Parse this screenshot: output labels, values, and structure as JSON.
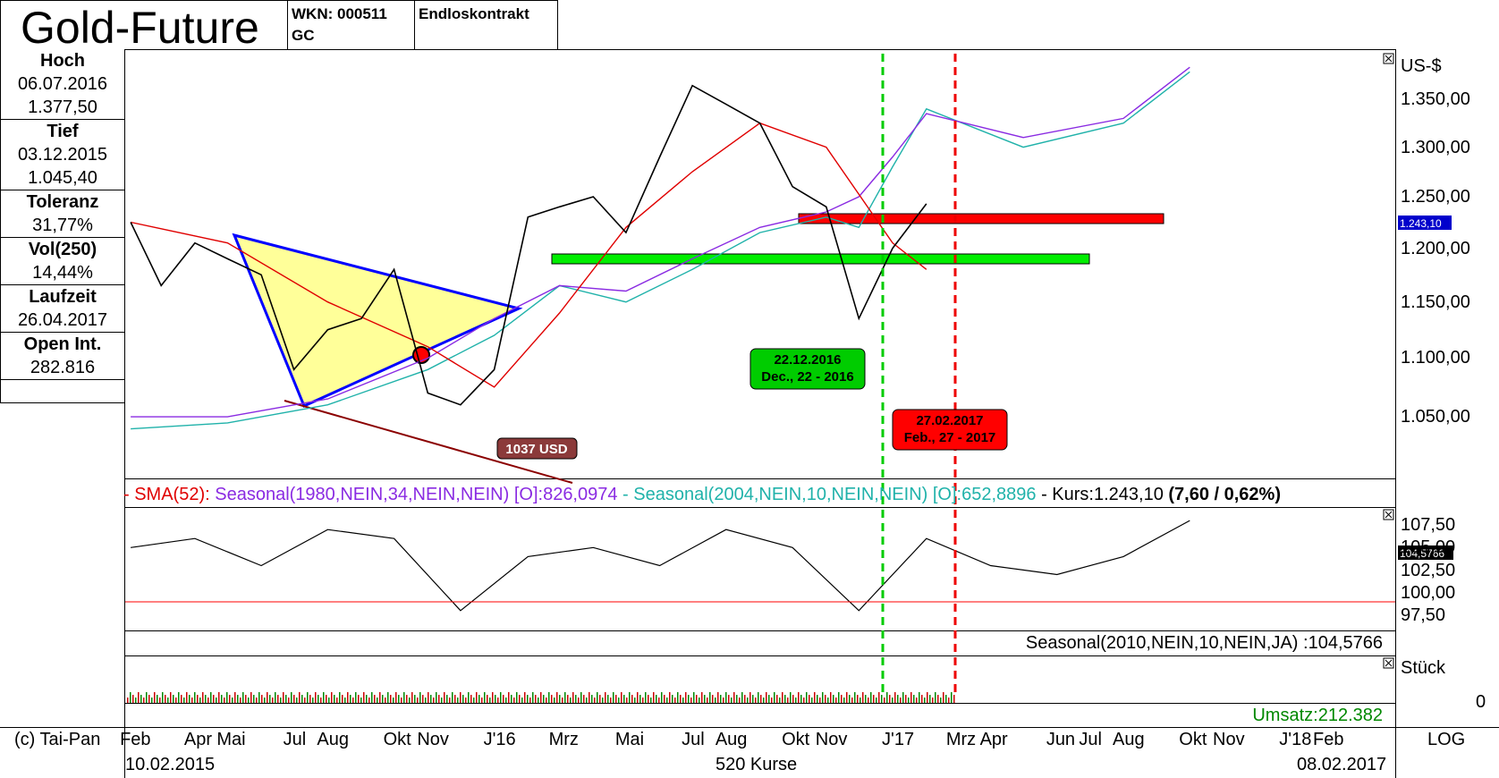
{
  "header": {
    "title": "Gold-Future",
    "wkn": "WKN: 000511",
    "symbol": "GC",
    "contract": "Endloskontrakt"
  },
  "stats": [
    {
      "label": "Hoch",
      "values": [
        "06.07.2016",
        "1.377,50"
      ]
    },
    {
      "label": "Tief",
      "values": [
        "03.12.2015",
        "1.045,40"
      ]
    },
    {
      "label": "Toleranz",
      "values": [
        "31,77%"
      ]
    },
    {
      "label": "Vol(250)",
      "values": [
        "14,44%"
      ]
    },
    {
      "label": "Laufzeit",
      "values": [
        "26.04.2017"
      ]
    },
    {
      "label": "Open Int.",
      "values": [
        "282.816"
      ]
    }
  ],
  "main_panel": {
    "unit": "US-$",
    "current_value": "1.243,10",
    "annotations": {
      "target_price": "1037 USD",
      "date1_line1": "22.12.2016",
      "date1_line2": "Dec., 22 - 2016",
      "date2_line1": "27.02.2017",
      "date2_line2": "Feb., 27 - 2017"
    },
    "legend": {
      "sma": "- SMA(52):",
      "s1980": "Seasonal(1980,NEIN,34,NEIN,NEIN) [O]:826,0974",
      "s2004": "- Seasonal(2004,NEIN,10,NEIN,NEIN) [O]:652,8896",
      "kurs": "- Kurs:1.243,10",
      "change": "(7,60 / 0,62%)"
    }
  },
  "seasonal_panel": {
    "current_value": "104,5766",
    "label": "Seasonal(2010,NEIN,10,NEIN,JA) :104,5766"
  },
  "volume_panel": {
    "unit": "Stück",
    "zero": "0",
    "umsatz": "Umsatz:212.382"
  },
  "footer": {
    "copyright": "(c) Tai-Pan",
    "scale": "LOG",
    "start_date": "10.02.2015",
    "count": "520 Kurse",
    "end_date": "08.02.2017"
  },
  "chart_data": {
    "type": "line",
    "title": "Gold-Future",
    "ylabel": "US-$",
    "y_scale": "log",
    "ylim": [
      1000,
      1400
    ],
    "price_ticks": [
      "1.050,00",
      "1.100,00",
      "1.150,00",
      "1.200,00",
      "1.250,00",
      "1.300,00",
      "1.350,00"
    ],
    "price_tick_values": [
      1050,
      1100,
      1150,
      1200,
      1250,
      1300,
      1350
    ],
    "months": [
      "Feb",
      "Apr",
      "Mai",
      "Jul",
      "Aug",
      "Okt",
      "Nov",
      "J'16",
      "Mrz",
      "Mai",
      "Jul",
      "Aug",
      "Okt",
      "Nov",
      "J'17",
      "Mrz",
      "Apr",
      "Jun",
      "Jul",
      "Aug",
      "Okt",
      "Nov",
      "J'18",
      "Feb"
    ],
    "month_dates": [
      "2015-02",
      "2015-04",
      "2015-05",
      "2015-07",
      "2015-08",
      "2015-10",
      "2015-11",
      "2016-01",
      "2016-03",
      "2016-05",
      "2016-07",
      "2016-08",
      "2016-10",
      "2016-11",
      "2017-01",
      "2017-03",
      "2017-04",
      "2017-06",
      "2017-07",
      "2017-08",
      "2017-10",
      "2017-11",
      "2018-01",
      "2018-02"
    ],
    "series": [
      {
        "name": "Kurs",
        "color": "#000000",
        "x": [
          "2015-02",
          "2015-03",
          "2015-04",
          "2015-05",
          "2015-06",
          "2015-07",
          "2015-08",
          "2015-09",
          "2015-10",
          "2015-11",
          "2015-12",
          "2016-01",
          "2016-02",
          "2016-03",
          "2016-04",
          "2016-05",
          "2016-06",
          "2016-07",
          "2016-08",
          "2016-09",
          "2016-10",
          "2016-11",
          "2016-12",
          "2017-01",
          "2017-02"
        ],
        "values": [
          1225,
          1165,
          1205,
          1190,
          1175,
          1090,
          1125,
          1135,
          1180,
          1070,
          1060,
          1090,
          1230,
          1240,
          1250,
          1215,
          1290,
          1365,
          1345,
          1325,
          1260,
          1240,
          1135,
          1200,
          1243
        ]
      },
      {
        "name": "SMA(52)",
        "color": "#e00000",
        "x": [
          "2015-02",
          "2015-05",
          "2015-08",
          "2015-11",
          "2016-01",
          "2016-03",
          "2016-05",
          "2016-07",
          "2016-09",
          "2016-11",
          "2017-01",
          "2017-02"
        ],
        "values": [
          1225,
          1205,
          1150,
          1110,
          1075,
          1140,
          1220,
          1275,
          1325,
          1300,
          1205,
          1180
        ]
      },
      {
        "name": "Seasonal(1980,NEIN,34,NEIN,NEIN)",
        "color": "#8a2be2",
        "x": [
          "2015-02",
          "2015-05",
          "2015-08",
          "2015-11",
          "2016-01",
          "2016-03",
          "2016-05",
          "2016-07",
          "2016-09",
          "2016-11",
          "2016-12",
          "2017-01",
          "2017-02",
          "2017-05",
          "2017-08",
          "2017-10"
        ],
        "values": [
          1050,
          1050,
          1065,
          1100,
          1135,
          1165,
          1160,
          1190,
          1220,
          1235,
          1250,
          1290,
          1335,
          1310,
          1330,
          1385
        ]
      },
      {
        "name": "Seasonal(2004,NEIN,10,NEIN,NEIN)",
        "color": "#20b2aa",
        "x": [
          "2015-02",
          "2015-05",
          "2015-08",
          "2015-11",
          "2016-01",
          "2016-03",
          "2016-05",
          "2016-07",
          "2016-09",
          "2016-11",
          "2016-12",
          "2017-01",
          "2017-02",
          "2017-05",
          "2017-08",
          "2017-10"
        ],
        "values": [
          1040,
          1045,
          1060,
          1090,
          1120,
          1165,
          1150,
          1180,
          1215,
          1230,
          1220,
          1280,
          1340,
          1300,
          1325,
          1380
        ]
      }
    ],
    "seasonal_index": {
      "name": "Seasonal(2010,NEIN,10,NEIN,JA)",
      "ticks": [
        "97,50",
        "100,00",
        "102,50",
        "105,00",
        "107,50"
      ],
      "tick_values": [
        97.5,
        100,
        102.5,
        105,
        107.5
      ],
      "x": [
        "2015-02",
        "2015-04",
        "2015-06",
        "2015-08",
        "2015-10",
        "2015-12",
        "2016-02",
        "2016-04",
        "2016-06",
        "2016-08",
        "2016-10",
        "2016-12",
        "2017-02",
        "2017-04",
        "2017-06",
        "2017-08",
        "2017-10"
      ],
      "values": [
        105,
        106,
        103,
        107,
        106,
        98,
        104,
        105,
        103,
        107,
        105,
        98,
        106,
        103,
        102,
        104,
        108
      ],
      "current": 104.5766
    },
    "horizontal_levels": [
      {
        "name": "resistance",
        "value": 1245,
        "color": "#ff0000"
      },
      {
        "name": "support",
        "value": 1210,
        "color": "#00e000"
      }
    ],
    "vertical_markers": [
      {
        "date": "2016-12-22",
        "color": "#00cc00"
      },
      {
        "date": "2017-02-27",
        "color": "#ee0000"
      }
    ]
  }
}
